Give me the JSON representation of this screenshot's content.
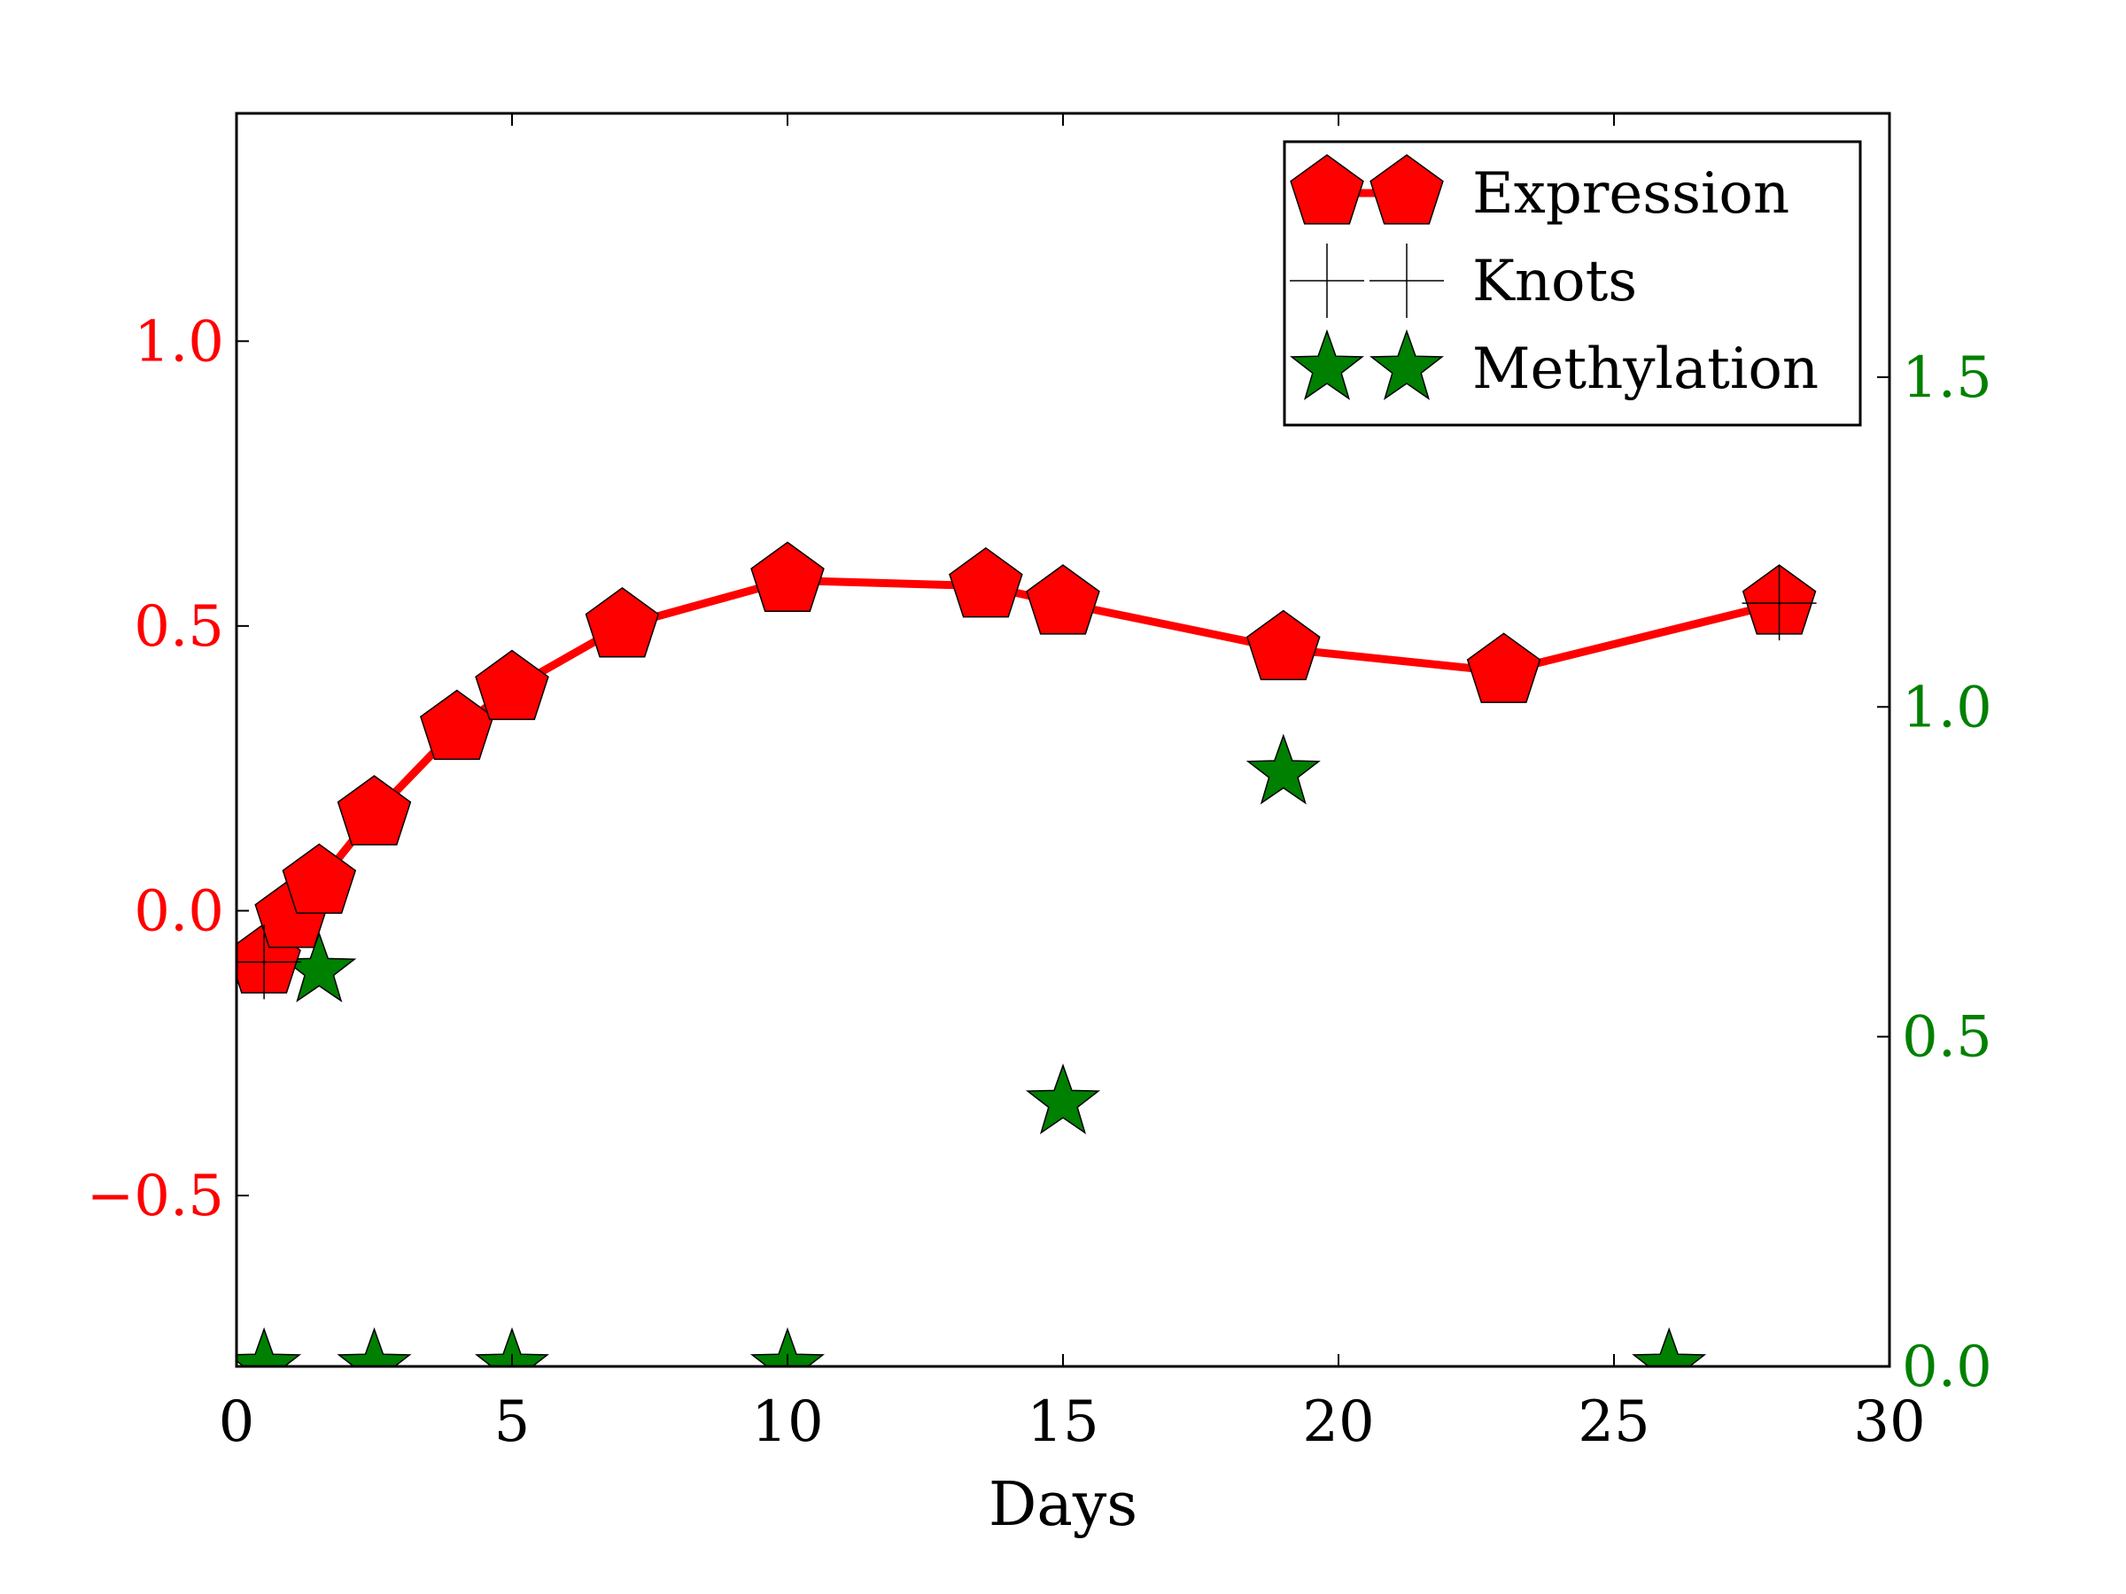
{
  "chart_data": {
    "type": "line",
    "title": "",
    "xlabel": "Days",
    "ylabel_left": "",
    "ylabel_right": "",
    "xlim": [
      0,
      30
    ],
    "ylim_left": [
      -0.8,
      1.4
    ],
    "ylim_right": [
      0.0,
      1.9
    ],
    "x_ticks": [
      0,
      5,
      10,
      15,
      20,
      25,
      30
    ],
    "x_tick_labels": [
      "0",
      "5",
      "10",
      "15",
      "20",
      "25",
      "30"
    ],
    "y_left_ticks": [
      -0.5,
      0.0,
      0.5,
      1.0
    ],
    "y_left_tick_labels": [
      "−0.5",
      "0.0",
      "0.5",
      "1.0"
    ],
    "y_right_ticks": [
      0.0,
      0.5,
      1.0,
      1.5
    ],
    "y_right_tick_labels": [
      "0.0",
      "0.5",
      "1.0",
      "1.5"
    ],
    "grid": false,
    "legend_position": "top-right",
    "colors": {
      "expression": "#ff0000",
      "knots": "#000000",
      "methylation": "#008000",
      "left_axis": "#ff0000",
      "right_axis": "#008000"
    },
    "series": [
      {
        "name": "Expression",
        "axis": "left",
        "marker": "pentagon",
        "line": true,
        "x": [
          0.5,
          1.0,
          1.5,
          2.5,
          4.0,
          5.0,
          7.0,
          10.0,
          13.6,
          15.0,
          19.0,
          23.0,
          28.0
        ],
        "y": [
          -0.09,
          -0.01,
          0.05,
          0.17,
          0.32,
          0.39,
          0.5,
          0.58,
          0.57,
          0.54,
          0.46,
          0.42,
          0.54
        ]
      },
      {
        "name": "Knots",
        "axis": "left",
        "marker": "plus",
        "line": false,
        "x": [
          0.5,
          28.0
        ],
        "y": [
          -0.09,
          0.54
        ]
      },
      {
        "name": "Methylation",
        "axis": "right",
        "marker": "star",
        "line": false,
        "x": [
          0.5,
          1.5,
          2.5,
          5.0,
          10.0,
          15.0,
          19.0,
          26.0
        ],
        "y": [
          0.0,
          0.6,
          0.0,
          0.0,
          0.0,
          0.4,
          0.9,
          0.0
        ]
      }
    ]
  }
}
